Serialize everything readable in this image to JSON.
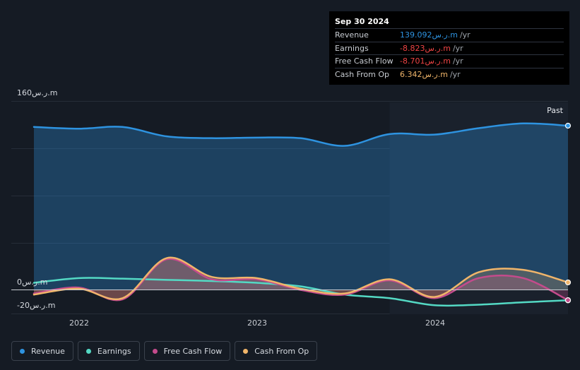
{
  "tooltip": {
    "date": "Sep 30 2024",
    "rows": [
      {
        "label": "Revenue",
        "value": "139.092ر.س.m",
        "suffix": "/yr",
        "color": "#2e93e0"
      },
      {
        "label": "Earnings",
        "value": "-8.823ر.س.m",
        "suffix": "/yr",
        "color": "#ef4444"
      },
      {
        "label": "Free Cash Flow",
        "value": "-8.701ر.س.m",
        "suffix": "/yr",
        "color": "#ef4444"
      },
      {
        "label": "Cash From Op",
        "value": "6.342ر.س.m",
        "suffix": "/yr",
        "color": "#f0b56a"
      }
    ]
  },
  "past_label": "Past",
  "y_top_label": "160ر.س.m",
  "y_zero_label": "0ر.س.m",
  "y_bottom_label": "-20ر.س.m",
  "colors": {
    "revenue": "#2e93e0",
    "earnings": "#54d9c4",
    "fcf": "#c44b8c",
    "cfo": "#f0b56a",
    "background": "#151b24"
  },
  "legend": [
    {
      "label": "Revenue",
      "color": "#2e93e0"
    },
    {
      "label": "Earnings",
      "color": "#54d9c4"
    },
    {
      "label": "Free Cash Flow",
      "color": "#c44b8c"
    },
    {
      "label": "Cash From Op",
      "color": "#f0b56a"
    }
  ],
  "chart_data": {
    "type": "area",
    "x_ticks": [
      "2022",
      "2023",
      "2024"
    ],
    "ylim": [
      -20,
      160
    ],
    "y_axis_unit": "ر.س.m",
    "x_range": [
      "2021-09-30",
      "2024-09-30"
    ],
    "past_region_start": "2023-09-30",
    "series": [
      {
        "name": "Revenue",
        "x": [
          "2021-09-30",
          "2021-12-31",
          "2022-03-31",
          "2022-06-30",
          "2022-09-30",
          "2022-12-31",
          "2023-03-31",
          "2023-06-30",
          "2023-09-30",
          "2023-12-31",
          "2024-03-31",
          "2024-06-30",
          "2024-09-30"
        ],
        "values": [
          138,
          136.5,
          138,
          130,
          128.5,
          129,
          128.5,
          122,
          132,
          131.5,
          137,
          141,
          139.092
        ]
      },
      {
        "name": "Earnings",
        "x": [
          "2021-09-30",
          "2021-12-31",
          "2022-03-31",
          "2022-06-30",
          "2022-09-30",
          "2022-12-31",
          "2023-03-31",
          "2023-06-30",
          "2023-09-30",
          "2023-12-31",
          "2024-03-31",
          "2024-06-30",
          "2024-09-30"
        ],
        "values": [
          6,
          10,
          9.5,
          8.5,
          7.5,
          6,
          3,
          -4,
          -7,
          -13,
          -12.5,
          -10.5,
          -8.823
        ]
      },
      {
        "name": "Free Cash Flow",
        "x": [
          "2021-09-30",
          "2021-12-31",
          "2022-03-31",
          "2022-06-30",
          "2022-09-30",
          "2022-12-31",
          "2023-03-31",
          "2023-06-30",
          "2023-09-30",
          "2023-12-31",
          "2024-03-31",
          "2024-06-30",
          "2024-09-30"
        ],
        "values": [
          -3,
          2,
          -8,
          26,
          9,
          9,
          0,
          -4,
          8,
          -7,
          10,
          10,
          -8.701
        ]
      },
      {
        "name": "Cash From Op",
        "x": [
          "2021-09-30",
          "2021-12-31",
          "2022-03-31",
          "2022-06-30",
          "2022-09-30",
          "2022-12-31",
          "2023-03-31",
          "2023-06-30",
          "2023-09-30",
          "2023-12-31",
          "2024-03-31",
          "2024-06-30",
          "2024-09-30"
        ],
        "values": [
          -4,
          1,
          -7,
          27,
          11,
          10,
          1,
          -3,
          9,
          -6,
          15,
          17,
          6.342
        ]
      }
    ]
  }
}
